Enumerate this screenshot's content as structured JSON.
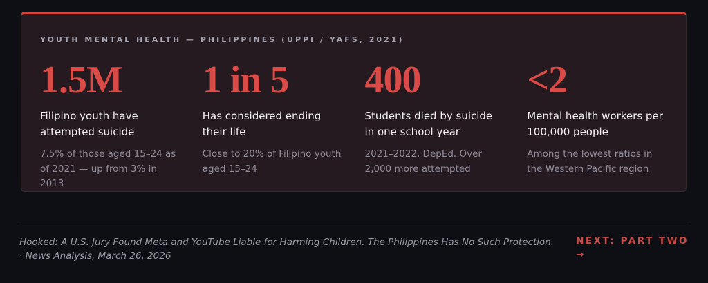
{
  "card": {
    "eyebrow": "YOUTH MENTAL HEALTH — PHILIPPINES (UPPI / YAFS, 2021)",
    "stats": [
      {
        "value": "1.5M",
        "label": "Filipino youth have attempted suicide",
        "detail": "7.5% of those aged 15–24 as of 2021 — up from 3% in 2013"
      },
      {
        "value": "1 in 5",
        "label": "Has considered ending their life",
        "detail": "Close to 20% of Filipino youth aged 15–24"
      },
      {
        "value": "400",
        "label": "Students died by suicide in one school year",
        "detail": "2021–2022, DepEd. Over 2,000 more attempted"
      },
      {
        "value": "<2",
        "label": "Mental health workers per 100,000 people",
        "detail": "Among the lowest ratios in the Western Pacific region"
      }
    ]
  },
  "footer": {
    "citation": "Hooked: A U.S. Jury Found Meta and YouTube Liable for Harming Children. The Philippines Has No Such Protection. · News Analysis, March 26, 2026",
    "next_label": "NEXT: PART TWO",
    "next_arrow": "→"
  },
  "colors": {
    "page_background": "#0d0f15",
    "card_background": "#251a1f",
    "accent_red": "#da4a46",
    "top_bar_red": "#d8433e",
    "link_red": "#c84b45",
    "label_white": "#f3f1f3",
    "muted_gray": "#8f8c9b"
  }
}
